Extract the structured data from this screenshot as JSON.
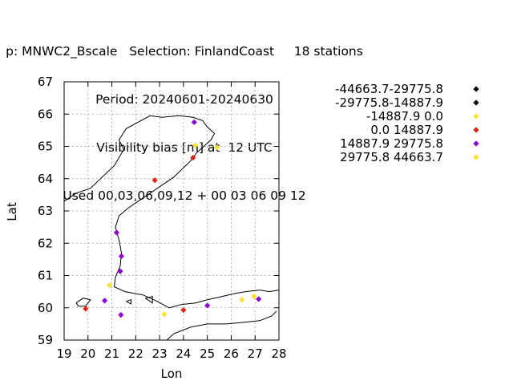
{
  "title": {
    "line1": "p: MNWC2_Bscale   Selection: FinlandCoast     18 stations",
    "line2": "Period: 20240601-20240630",
    "line3": "Visibility bias [m] at  12 UTC",
    "line4": "Used 00,03,06,09,12 + 00 03 06 09 12"
  },
  "chart_data": {
    "type": "scatter",
    "xlabel": "Lon",
    "ylabel": "Lat",
    "xlim": [
      19,
      28
    ],
    "ylim": [
      59,
      67
    ],
    "xticks": [
      "19",
      "20",
      "21",
      "22",
      "23",
      "24",
      "25",
      "26",
      "27",
      "28"
    ],
    "yticks": [
      "59",
      "60",
      "61",
      "62",
      "63",
      "64",
      "65",
      "66",
      "67"
    ],
    "grid": true,
    "legend_position": "right",
    "legend": [
      {
        "label": "-44663.7-29775.8",
        "color": "#000000"
      },
      {
        "label": "-29775.8-14887.9",
        "color": "#000000"
      },
      {
        "label": "-14887.9 0.0",
        "color": "#ffe033"
      },
      {
        "label": "0.0 14887.9",
        "color": "#e0230d"
      },
      {
        "label": "14887.9 29775.8",
        "color": "#8c00d4"
      },
      {
        "label": "29775.8 44663.7",
        "color": "#ffe033"
      }
    ],
    "points": [
      {
        "lon": 24.45,
        "lat": 65.75,
        "cls": 4
      },
      {
        "lon": 24.5,
        "lat": 65.03,
        "cls": 2
      },
      {
        "lon": 25.4,
        "lat": 64.97,
        "cls": 2
      },
      {
        "lon": 24.4,
        "lat": 64.65,
        "cls": 3
      },
      {
        "lon": 22.8,
        "lat": 63.95,
        "cls": 3
      },
      {
        "lon": 21.2,
        "lat": 62.33,
        "cls": 4
      },
      {
        "lon": 21.4,
        "lat": 61.6,
        "cls": 4
      },
      {
        "lon": 21.35,
        "lat": 61.13,
        "cls": 4
      },
      {
        "lon": 20.9,
        "lat": 60.7,
        "cls": 2
      },
      {
        "lon": 20.7,
        "lat": 60.22,
        "cls": 4
      },
      {
        "lon": 19.9,
        "lat": 59.97,
        "cls": 3
      },
      {
        "lon": 21.38,
        "lat": 59.78,
        "cls": 4
      },
      {
        "lon": 23.2,
        "lat": 59.8,
        "cls": 2
      },
      {
        "lon": 24.0,
        "lat": 59.93,
        "cls": 3
      },
      {
        "lon": 25.0,
        "lat": 60.07,
        "cls": 4
      },
      {
        "lon": 26.45,
        "lat": 60.25,
        "cls": 2
      },
      {
        "lon": 26.95,
        "lat": 60.35,
        "cls": 2
      },
      {
        "lon": 27.15,
        "lat": 60.27,
        "cls": 4
      }
    ],
    "coastline": [
      [
        [
          19.0,
          63.3
        ],
        [
          19.5,
          63.55
        ],
        [
          20.1,
          63.7
        ],
        [
          20.6,
          64.05
        ],
        [
          21.1,
          64.4
        ],
        [
          21.5,
          64.9
        ],
        [
          21.3,
          65.2
        ],
        [
          21.6,
          65.55
        ],
        [
          22.1,
          65.75
        ],
        [
          22.6,
          65.95
        ],
        [
          23.1,
          65.9
        ],
        [
          23.8,
          65.95
        ],
        [
          24.4,
          65.9
        ],
        [
          24.8,
          65.8
        ],
        [
          25.0,
          65.6
        ],
        [
          25.3,
          65.4
        ],
        [
          25.15,
          65.2
        ],
        [
          24.85,
          65.0
        ],
        [
          24.55,
          64.8
        ],
        [
          24.3,
          64.55
        ],
        [
          23.6,
          64.05
        ],
        [
          22.6,
          63.55
        ],
        [
          21.7,
          63.1
        ],
        [
          21.3,
          62.85
        ],
        [
          21.15,
          62.5
        ],
        [
          21.3,
          62.1
        ],
        [
          21.4,
          61.7
        ],
        [
          21.35,
          61.3
        ],
        [
          21.15,
          60.95
        ],
        [
          21.1,
          60.65
        ],
        [
          21.55,
          60.5
        ],
        [
          22.3,
          60.4
        ],
        [
          22.9,
          60.2
        ],
        [
          23.4,
          60.0
        ],
        [
          23.9,
          60.1
        ],
        [
          24.5,
          60.15
        ],
        [
          25.0,
          60.25
        ],
        [
          25.6,
          60.35
        ],
        [
          26.2,
          60.45
        ],
        [
          26.6,
          60.5
        ],
        [
          27.2,
          60.55
        ],
        [
          27.6,
          60.5
        ],
        [
          28.0,
          60.55
        ]
      ],
      [
        [
          19.5,
          60.15
        ],
        [
          19.8,
          60.3
        ],
        [
          20.1,
          60.25
        ],
        [
          19.9,
          60.05
        ],
        [
          19.6,
          60.05
        ],
        [
          19.5,
          60.15
        ]
      ],
      [
        [
          21.6,
          60.2
        ],
        [
          21.8,
          60.25
        ],
        [
          21.8,
          60.12
        ],
        [
          21.6,
          60.2
        ]
      ],
      [
        [
          22.4,
          60.3
        ],
        [
          22.7,
          60.35
        ],
        [
          22.7,
          60.15
        ],
        [
          22.4,
          60.3
        ]
      ],
      [
        [
          27.9,
          59.9
        ],
        [
          27.7,
          59.75
        ],
        [
          27.2,
          59.6
        ],
        [
          26.5,
          59.55
        ],
        [
          25.8,
          59.5
        ],
        [
          25.0,
          59.5
        ],
        [
          24.3,
          59.4
        ],
        [
          23.6,
          59.2
        ],
        [
          23.3,
          59.0
        ]
      ]
    ]
  }
}
